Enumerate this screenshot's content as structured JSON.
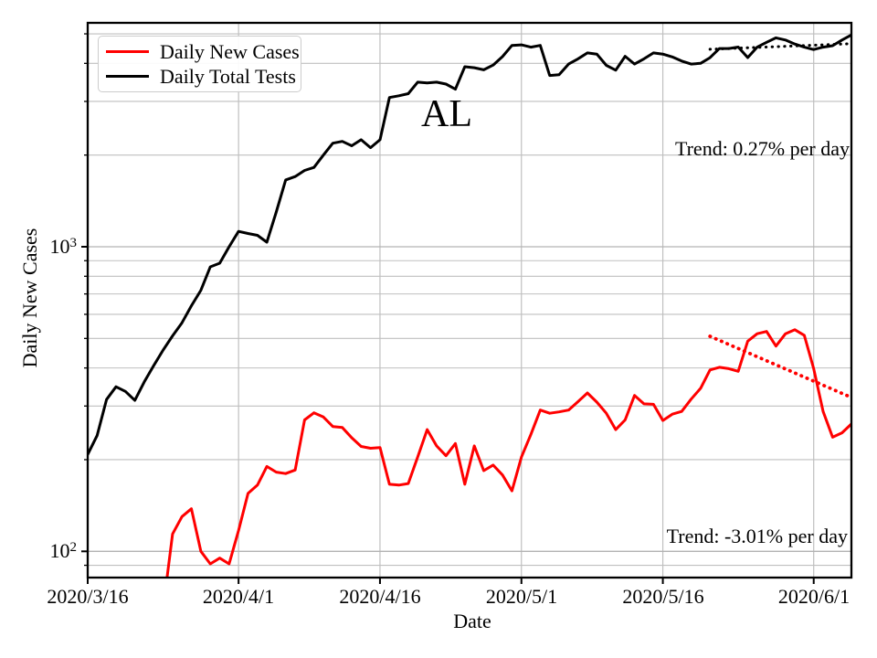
{
  "chart_data": {
    "type": "line",
    "title": "AL",
    "xlabel": "Date",
    "ylabel": "Daily New Cases",
    "yscale": "log",
    "grid": true,
    "legend_position": "upper-left",
    "x": [
      "2020/3/16",
      "2020/3/17",
      "2020/3/18",
      "2020/3/19",
      "2020/3/20",
      "2020/3/21",
      "2020/3/22",
      "2020/3/23",
      "2020/3/24",
      "2020/3/25",
      "2020/3/26",
      "2020/3/27",
      "2020/3/28",
      "2020/3/29",
      "2020/3/30",
      "2020/3/31",
      "2020/4/1",
      "2020/4/2",
      "2020/4/3",
      "2020/4/4",
      "2020/4/5",
      "2020/4/6",
      "2020/4/7",
      "2020/4/8",
      "2020/4/9",
      "2020/4/10",
      "2020/4/11",
      "2020/4/12",
      "2020/4/13",
      "2020/4/14",
      "2020/4/15",
      "2020/4/16",
      "2020/4/17",
      "2020/4/18",
      "2020/4/19",
      "2020/4/20",
      "2020/4/21",
      "2020/4/22",
      "2020/4/23",
      "2020/4/24",
      "2020/4/25",
      "2020/4/26",
      "2020/4/27",
      "2020/4/28",
      "2020/4/29",
      "2020/4/30",
      "2020/5/1",
      "2020/5/2",
      "2020/5/3",
      "2020/5/4",
      "2020/5/5",
      "2020/5/6",
      "2020/5/7",
      "2020/5/8",
      "2020/5/9",
      "2020/5/10",
      "2020/5/11",
      "2020/5/12",
      "2020/5/13",
      "2020/5/14",
      "2020/5/15",
      "2020/5/16",
      "2020/5/17",
      "2020/5/18",
      "2020/5/19",
      "2020/5/20",
      "2020/5/21",
      "2020/5/22",
      "2020/5/23",
      "2020/5/24",
      "2020/5/25",
      "2020/5/26",
      "2020/5/27",
      "2020/5/28",
      "2020/5/29",
      "2020/5/30",
      "2020/5/31",
      "2020/6/1",
      "2020/6/2",
      "2020/6/3",
      "2020/6/4",
      "2020/6/5"
    ],
    "x_axis": {
      "tick_labels": [
        "2020/3/16",
        "2020/4/1",
        "2020/4/16",
        "2020/5/1",
        "2020/5/16",
        "2020/6/1"
      ],
      "tick_positions_days": [
        0,
        16,
        31,
        46,
        61,
        77
      ]
    },
    "y_axis": {
      "tick_labels": [
        {
          "base": "10",
          "exp": "2",
          "value": 100
        },
        {
          "base": "10",
          "exp": "3",
          "value": 1000
        }
      ],
      "minor_gridlines": [
        90,
        200,
        300,
        400,
        500,
        600,
        700,
        800,
        900,
        2000,
        3000,
        4000,
        5000
      ],
      "ylim": [
        82,
        5430
      ]
    },
    "series": [
      {
        "name": "Daily New Cases",
        "color": "#ff0000",
        "values": [
          null,
          null,
          null,
          null,
          null,
          null,
          null,
          null,
          65,
          114,
          130,
          138,
          100,
          91,
          95,
          91,
          117,
          155,
          165,
          190,
          182,
          180,
          185,
          270,
          285,
          276,
          257,
          255,
          236,
          221,
          218,
          219,
          166,
          165,
          167,
          204,
          251,
          222,
          206,
          226,
          166,
          222,
          184,
          192,
          178,
          158,
          204,
          242,
          291,
          284,
          287,
          291,
          310,
          331,
          309,
          284,
          251,
          270,
          325,
          305,
          304,
          269,
          282,
          288,
          316,
          343,
          394,
          402,
          398,
          390,
          490,
          518,
          527,
          472,
          518,
          534,
          512,
          398,
          288,
          237,
          245,
          262
        ]
      },
      {
        "name": "Daily Total Tests",
        "color": "#000000",
        "values": [
          208,
          240,
          315,
          347,
          335,
          313,
          360,
          407,
          458,
          510,
          563,
          640,
          720,
          859,
          883,
          1000,
          1123,
          1105,
          1090,
          1035,
          1300,
          1657,
          1700,
          1780,
          1822,
          2000,
          2188,
          2218,
          2145,
          2245,
          2115,
          2245,
          3090,
          3130,
          3180,
          3470,
          3450,
          3470,
          3420,
          3290,
          3900,
          3870,
          3810,
          3950,
          4210,
          4580,
          4600,
          4520,
          4580,
          3650,
          3670,
          3980,
          4140,
          4330,
          4290,
          3940,
          3800,
          4220,
          3980,
          4140,
          4330,
          4290,
          4200,
          4070,
          3980,
          4000,
          4175,
          4475,
          4475,
          4525,
          4180,
          4520,
          4690,
          4850,
          4770,
          4630,
          4520,
          4440,
          4520,
          4570,
          4770,
          4960
        ]
      }
    ],
    "trend_lines": [
      {
        "label": "Trend: 0.27% per day",
        "rate_percent_per_day": 0.27,
        "color": "#000000",
        "start_date": "2020/5/21",
        "end_date": "2020/6/5",
        "start_value": 4450,
        "end_value": 4640
      },
      {
        "label": "Trend: -3.01% per day",
        "rate_percent_per_day": -3.01,
        "color": "#ff0000",
        "start_date": "2020/5/21",
        "end_date": "2020/6/5",
        "start_value": 508,
        "end_value": 320
      }
    ]
  }
}
